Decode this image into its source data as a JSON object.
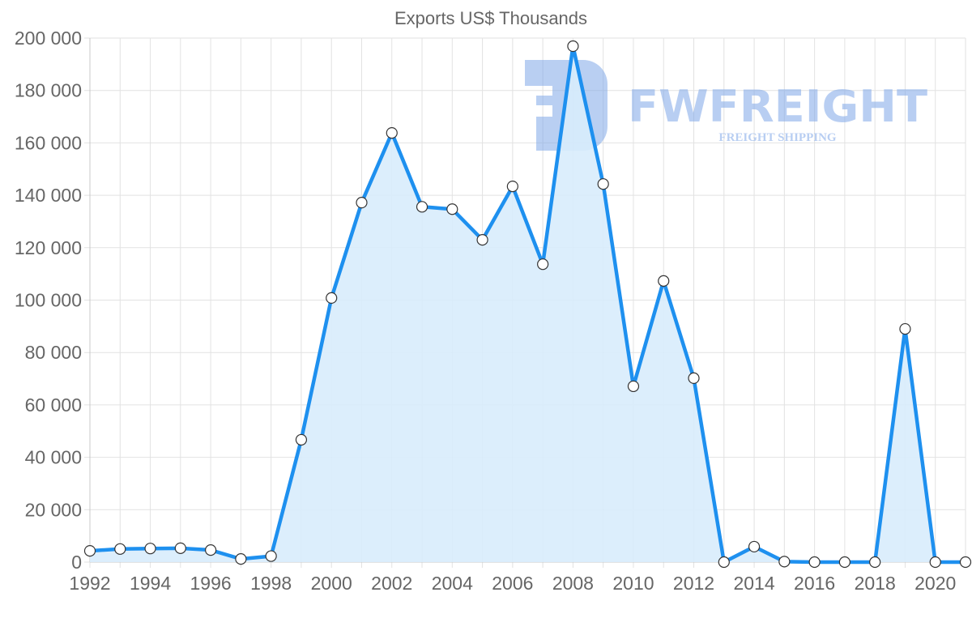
{
  "chart_data": {
    "type": "area",
    "title": "Exports US$ Thousands",
    "xlabel": "",
    "ylabel": "",
    "x": [
      1992,
      1993,
      1994,
      1995,
      1996,
      1997,
      1998,
      1999,
      2000,
      2001,
      2002,
      2003,
      2004,
      2005,
      2006,
      2007,
      2008,
      2009,
      2010,
      2011,
      2012,
      2013,
      2014,
      2015,
      2016,
      2017,
      2018,
      2019,
      2020,
      2021
    ],
    "series": [
      {
        "name": "Exports US$ Thousands",
        "values": [
          4300,
          5000,
          5200,
          5300,
          4600,
          1200,
          2300,
          46700,
          100800,
          137200,
          163800,
          135600,
          134700,
          123000,
          143400,
          113700,
          196900,
          144300,
          67100,
          107300,
          70200,
          0,
          5900,
          200,
          0,
          0,
          0,
          89000,
          0,
          0
        ],
        "color": "#1e90ef",
        "fill": "#d8ecfc"
      }
    ],
    "ylim": [
      0,
      200000
    ],
    "yticks": [
      0,
      20000,
      40000,
      60000,
      80000,
      100000,
      120000,
      140000,
      160000,
      180000,
      200000
    ],
    "ytick_labels": [
      "0",
      "20 000",
      "40 000",
      "60 000",
      "80 000",
      "100 000",
      "120 000",
      "140 000",
      "160 000",
      "180 000",
      "200 000"
    ],
    "xtick_labels": [
      "1992",
      "1994",
      "1996",
      "1998",
      "2000",
      "2002",
      "2004",
      "2006",
      "2008",
      "2010",
      "2012",
      "2014",
      "2016",
      "2018",
      "2020"
    ],
    "grid": true,
    "legend": "none"
  },
  "watermark": {
    "brand": "FWFREIGHT",
    "tagline": "FREIGHT SHIPPING",
    "color": "#7fa7e8"
  },
  "colors": {
    "line": "#1e90ef",
    "fill": "#d8ecfc",
    "grid": "#e2e2e2",
    "text": "#666666"
  }
}
